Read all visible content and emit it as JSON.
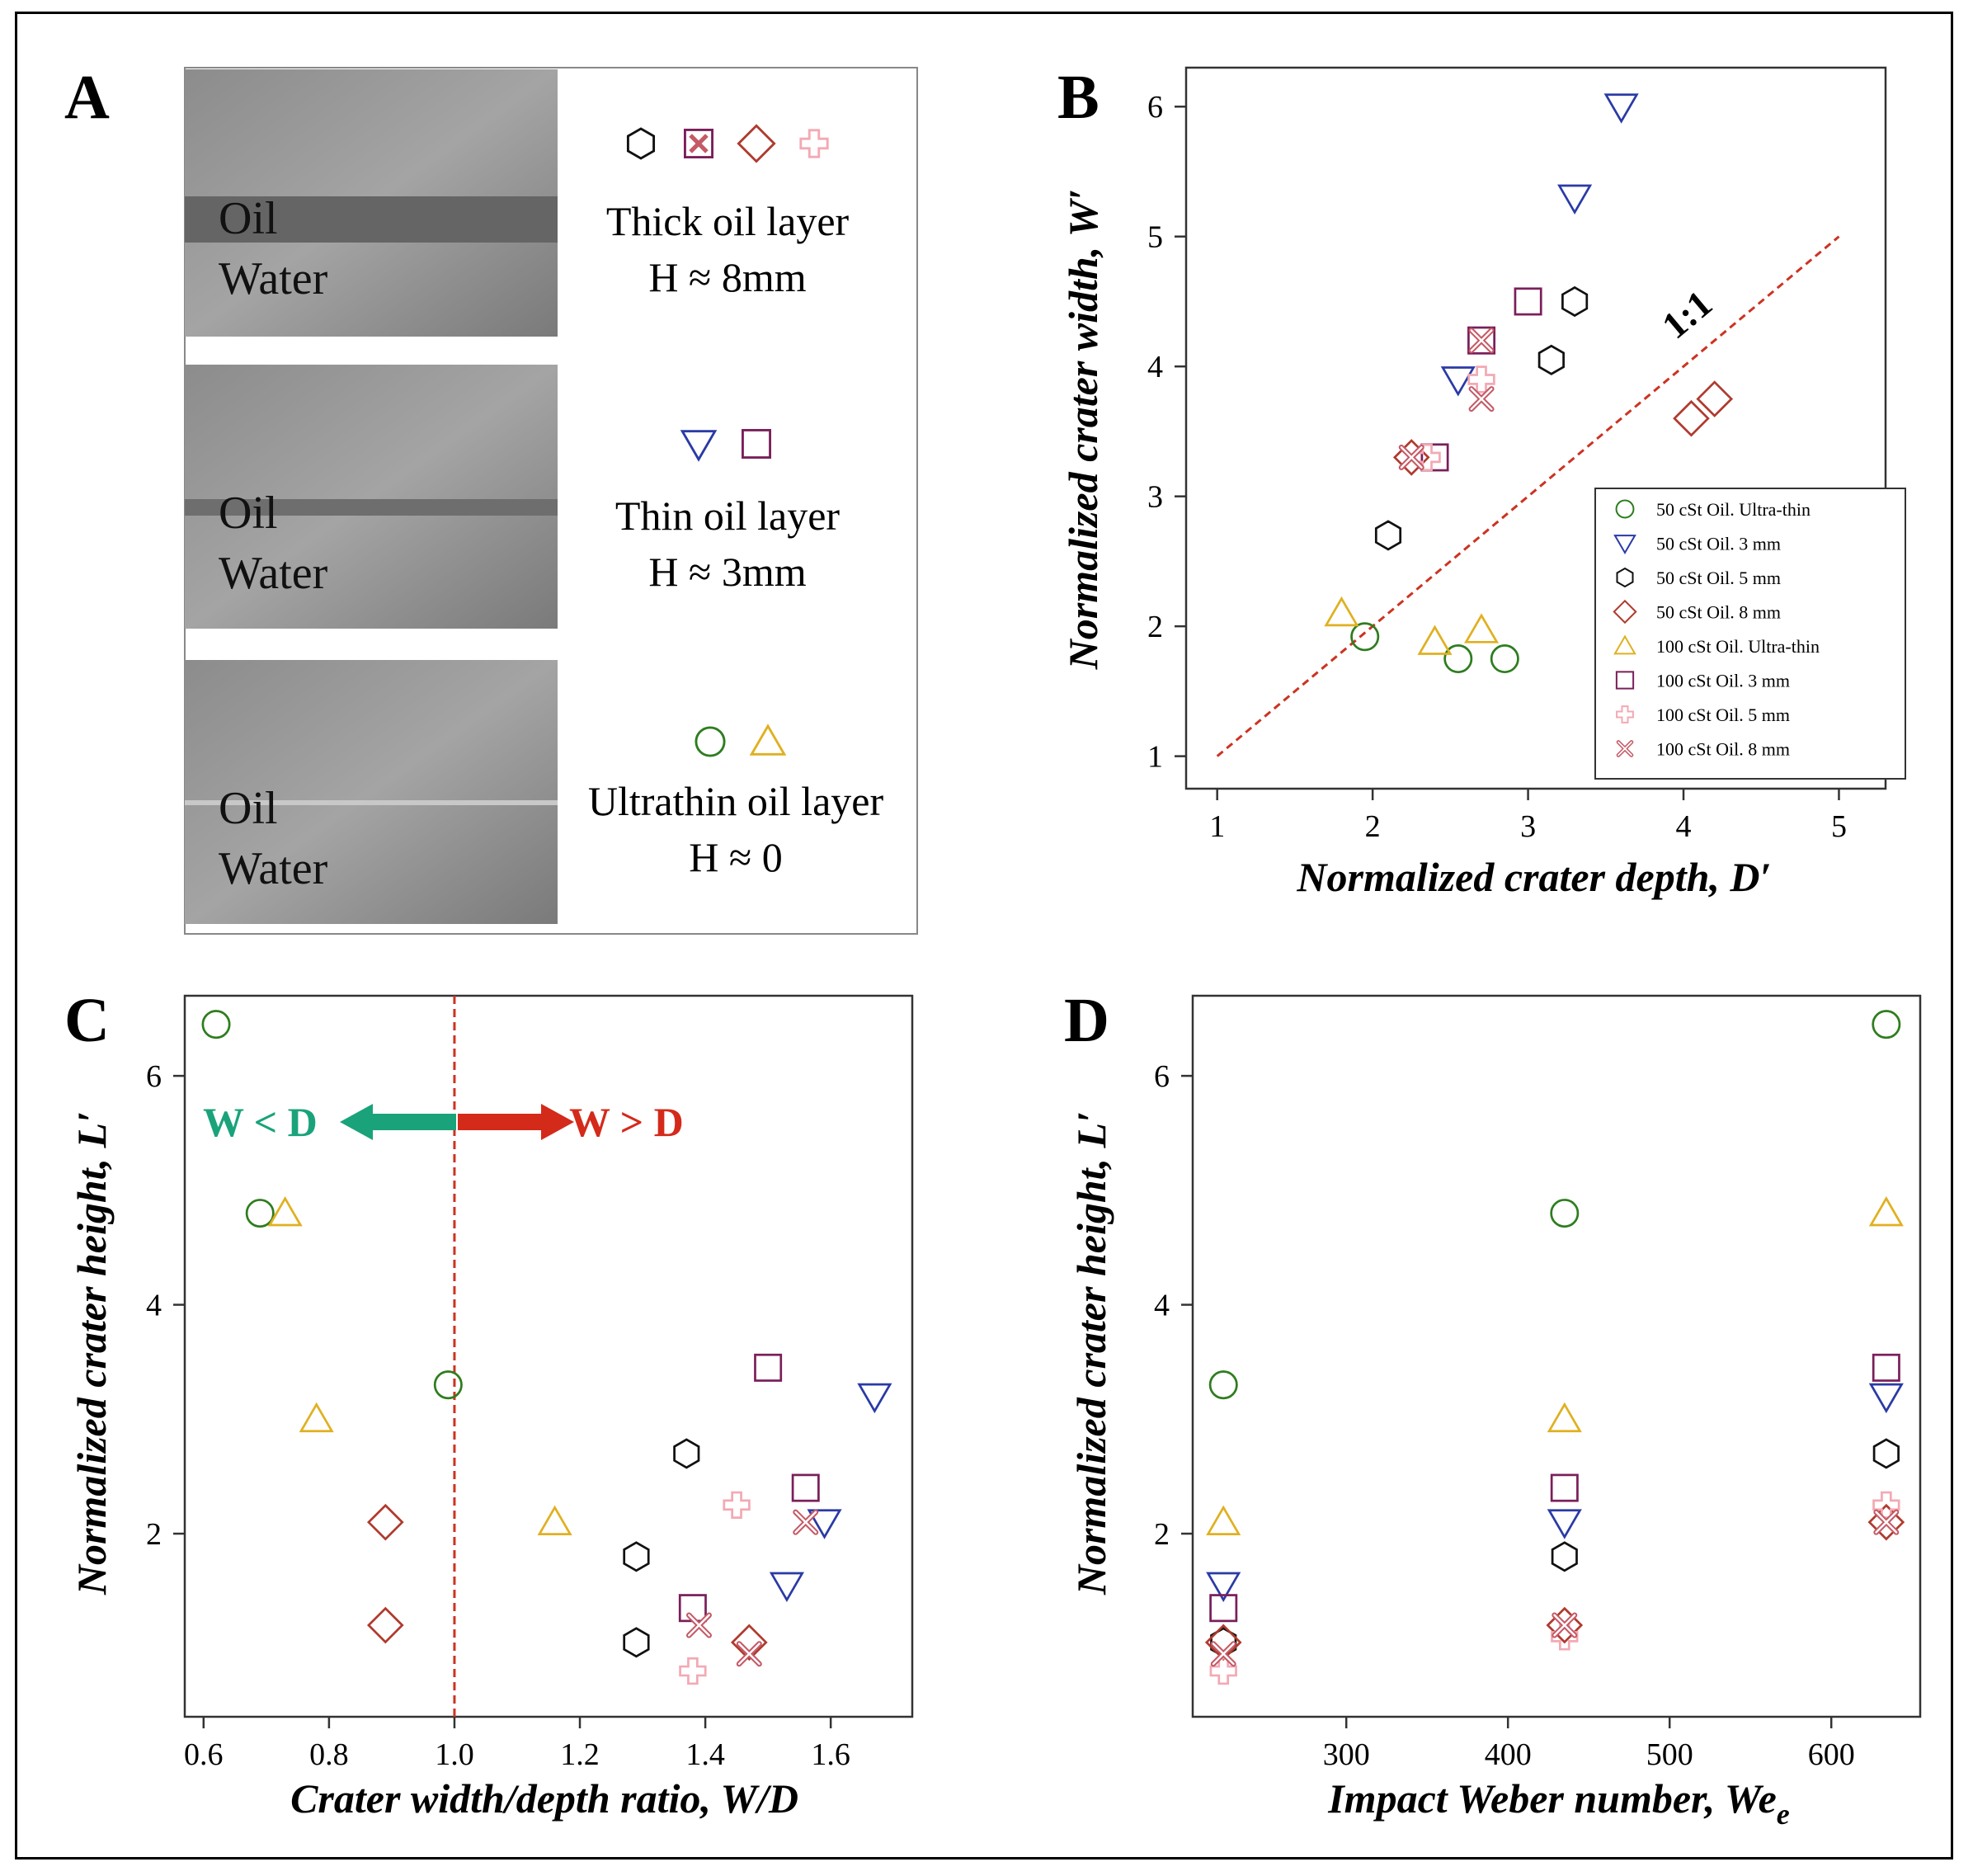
{
  "panel_letters": [
    "A",
    "B",
    "C",
    "D"
  ],
  "colors": {
    "green": "#2e7d1f",
    "blue": "#2a3aa6",
    "black": "#111111",
    "red": "#b03a2e",
    "yellow": "#e0b020",
    "purple": "#7a1f5a",
    "pink": "#f3a9b4",
    "pinkx": "#c45a66",
    "refline": "#cc3322",
    "arrow_green": "#1aa37a",
    "arrow_red": "#d42a1a"
  },
  "panelA": {
    "rows": [
      {
        "oil": "Oil",
        "water": "Water",
        "title": "Thick oil layer",
        "height": "H ≈ 8mm",
        "markers": [
          "hexagon",
          "square-x",
          "diamond",
          "plus"
        ]
      },
      {
        "oil": "Oil",
        "water": "Water",
        "title": "Thin oil layer",
        "height": "H ≈ 3mm",
        "markers": [
          "triangle-down",
          "square"
        ]
      },
      {
        "oil": "Oil",
        "water": "Water",
        "title": "Ultrathin oil layer",
        "height": "H ≈ 0",
        "markers": [
          "circle",
          "triangle-up"
        ]
      }
    ]
  },
  "chart_data": [
    {
      "id": "B",
      "type": "scatter",
      "xlabel": "Normalized crater depth, D′",
      "ylabel": "Normalized crater width, W′",
      "xlim": [
        0.8,
        5.3
      ],
      "ylim": [
        0.75,
        6.3
      ],
      "xticks": [
        1,
        2,
        3,
        4,
        5
      ],
      "yticks": [
        1,
        2,
        3,
        4,
        5,
        6
      ],
      "refline": {
        "label": "1:1",
        "from": [
          1,
          1
        ],
        "to": [
          5,
          5
        ]
      },
      "legend": {
        "position": "bottom-right",
        "entries": [
          {
            "marker": "circle",
            "color": "green",
            "label": "50 cSt Oil. Ultra-thin"
          },
          {
            "marker": "triangle-down",
            "color": "blue",
            "label": "50 cSt Oil. 3 mm"
          },
          {
            "marker": "hexagon",
            "color": "black",
            "label": "50 cSt Oil. 5 mm"
          },
          {
            "marker": "diamond",
            "color": "red",
            "label": "50 cSt Oil. 8 mm"
          },
          {
            "marker": "triangle-up",
            "color": "yellow",
            "label": "100 cSt Oil. Ultra-thin"
          },
          {
            "marker": "square",
            "color": "purple",
            "label": "100 cSt Oil. 3 mm"
          },
          {
            "marker": "plus",
            "color": "pink",
            "label": "100 cSt Oil. 5 mm"
          },
          {
            "marker": "x",
            "color": "pinkx",
            "label": "100 cSt Oil. 8 mm"
          }
        ]
      },
      "series": [
        {
          "name": "50 cSt Oil. Ultra-thin",
          "marker": "circle",
          "color": "green",
          "x": [
            1.95,
            2.55,
            2.85
          ],
          "y": [
            1.92,
            1.75,
            1.75
          ]
        },
        {
          "name": "50 cSt Oil. 3 mm",
          "marker": "triangle-down",
          "color": "blue",
          "x": [
            2.55,
            3.3,
            3.6
          ],
          "y": [
            3.9,
            5.3,
            6.0
          ]
        },
        {
          "name": "50 cSt Oil. 5 mm",
          "marker": "hexagon",
          "color": "black",
          "x": [
            2.1,
            3.15,
            3.3
          ],
          "y": [
            2.7,
            4.05,
            4.5
          ]
        },
        {
          "name": "50 cSt Oil. 8 mm",
          "marker": "diamond",
          "color": "red",
          "x": [
            2.25,
            4.05,
            4.2
          ],
          "y": [
            3.3,
            3.6,
            3.75
          ]
        },
        {
          "name": "100 cSt Oil. Ultra-thin",
          "marker": "triangle-up",
          "color": "yellow",
          "x": [
            1.8,
            2.4,
            2.7
          ],
          "y": [
            2.1,
            1.88,
            1.97
          ]
        },
        {
          "name": "100 cSt Oil. 3 mm",
          "marker": "square",
          "color": "purple",
          "x": [
            2.4,
            2.7,
            3.0
          ],
          "y": [
            3.3,
            4.2,
            4.5
          ]
        },
        {
          "name": "100 cSt Oil. 5 mm",
          "marker": "plus",
          "color": "pink",
          "x": [
            2.35,
            2.7
          ],
          "y": [
            3.3,
            3.9
          ]
        },
        {
          "name": "100 cSt Oil. 8 mm",
          "marker": "x",
          "color": "pinkx",
          "x": [
            2.25,
            2.7,
            2.7
          ],
          "y": [
            3.3,
            3.75,
            4.2
          ]
        }
      ]
    },
    {
      "id": "C",
      "type": "scatter",
      "xlabel": "Crater width/depth ratio, W/D",
      "ylabel": "Normalized crater height, L′",
      "xlim": [
        0.57,
        1.73
      ],
      "ylim": [
        0.4,
        6.7
      ],
      "xticks": [
        "0.6",
        "0.8",
        "1.0",
        "1.2",
        "1.4",
        "1.6"
      ],
      "yticks": [
        2,
        4,
        6
      ],
      "vline": 1.0,
      "arrows": {
        "left_label": "W < D",
        "right_label": "W > D"
      },
      "series": [
        {
          "marker": "circle",
          "color": "green",
          "x": [
            0.62,
            0.69,
            0.99
          ],
          "y": [
            6.45,
            4.8,
            3.3
          ]
        },
        {
          "marker": "triangle-up",
          "color": "yellow",
          "x": [
            0.73,
            0.78,
            1.16
          ],
          "y": [
            4.8,
            3.0,
            2.1
          ]
        },
        {
          "marker": "diamond",
          "color": "red",
          "x": [
            0.89,
            0.89,
            1.47
          ],
          "y": [
            2.1,
            1.2,
            1.05
          ]
        },
        {
          "marker": "hexagon",
          "color": "black",
          "x": [
            1.29,
            1.29,
            1.37
          ],
          "y": [
            1.8,
            1.05,
            2.7
          ]
        },
        {
          "marker": "square",
          "color": "purple",
          "x": [
            1.38,
            1.5,
            1.56
          ],
          "y": [
            1.35,
            3.45,
            2.4
          ]
        },
        {
          "marker": "triangle-down",
          "color": "blue",
          "x": [
            1.53,
            1.59,
            1.67
          ],
          "y": [
            1.55,
            2.1,
            3.2
          ]
        },
        {
          "marker": "plus",
          "color": "pink",
          "x": [
            1.38,
            1.45
          ],
          "y": [
            0.8,
            2.25
          ]
        },
        {
          "marker": "x",
          "color": "pinkx",
          "x": [
            1.39,
            1.47,
            1.56
          ],
          "y": [
            1.2,
            0.95,
            2.1
          ]
        }
      ]
    },
    {
      "id": "D",
      "type": "scatter",
      "xlabel": "Impact Weber number, We",
      "xlabel_sub": "e",
      "ylabel": "Normalized crater height, L′",
      "xlim": [
        205,
        655
      ],
      "ylim": [
        0.4,
        6.7
      ],
      "xticks": [
        300,
        400,
        500,
        600
      ],
      "yticks": [
        2,
        4,
        6
      ],
      "series": [
        {
          "marker": "circle",
          "color": "green",
          "x": [
            224,
            435,
            634
          ],
          "y": [
            3.3,
            4.8,
            6.45
          ]
        },
        {
          "marker": "triangle-up",
          "color": "yellow",
          "x": [
            224,
            435,
            634
          ],
          "y": [
            2.1,
            3.0,
            4.8
          ]
        },
        {
          "marker": "triangle-down",
          "color": "blue",
          "x": [
            224,
            435,
            634
          ],
          "y": [
            1.55,
            2.1,
            3.2
          ]
        },
        {
          "marker": "square",
          "color": "purple",
          "x": [
            224,
            435,
            634
          ],
          "y": [
            1.35,
            2.4,
            3.45
          ]
        },
        {
          "marker": "hexagon",
          "color": "black",
          "x": [
            224,
            435,
            634
          ],
          "y": [
            1.05,
            1.8,
            2.7
          ]
        },
        {
          "marker": "diamond",
          "color": "red",
          "x": [
            224,
            435,
            634
          ],
          "y": [
            1.05,
            1.2,
            2.1
          ]
        },
        {
          "marker": "plus",
          "color": "pink",
          "x": [
            224,
            435,
            634
          ],
          "y": [
            0.8,
            1.1,
            2.25
          ]
        },
        {
          "marker": "x",
          "color": "pinkx",
          "x": [
            224,
            435,
            634
          ],
          "y": [
            0.95,
            1.2,
            2.1
          ]
        }
      ]
    }
  ]
}
